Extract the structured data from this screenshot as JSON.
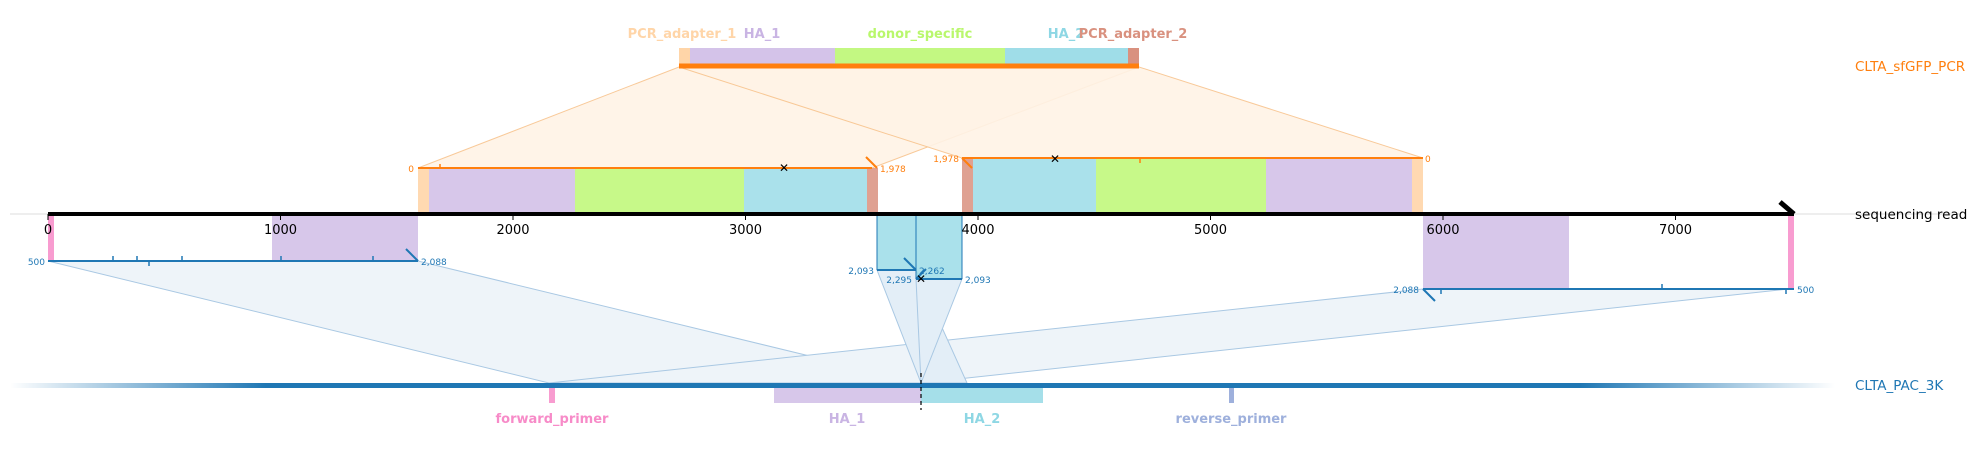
{
  "tracks": {
    "pcr": {
      "label": "CLTA_sfGFP_PCR",
      "color": "#ff7f0e"
    },
    "read": {
      "label": "sequencing read",
      "color": "#000000"
    },
    "ref": {
      "label": "CLTA_PAC_3K",
      "color": "#1f77b4"
    }
  },
  "read_axis": {
    "ticks": [
      "0",
      "1000",
      "2000",
      "3000",
      "4000",
      "5000",
      "6000",
      "7000"
    ]
  },
  "pcr_features": [
    {
      "name": "PCR_adapter_1",
      "color": "#ffd5a8"
    },
    {
      "name": "HA_1",
      "color": "#c9b4e3"
    },
    {
      "name": "donor_specific",
      "color": "#b9f76c"
    },
    {
      "name": "HA_2",
      "color": "#8ed7e4"
    },
    {
      "name": "PCR_adapter_2",
      "color": "#d9917f"
    }
  ],
  "ref_features": [
    {
      "name": "forward_primer",
      "color": "#f78bc8"
    },
    {
      "name": "HA_1",
      "color": "#c9b4e3"
    },
    {
      "name": "HA_2",
      "color": "#8ed7e4"
    },
    {
      "name": "reverse_primer",
      "color": "#9eb0dc"
    }
  ],
  "alignment_numbers": {
    "pcr_left_start": "0",
    "pcr_left_end": "1,978",
    "pcr_right_start": "1,978",
    "pcr_right_end": "0",
    "ref_left_start": "500",
    "ref_left_end": "2,088",
    "ref_mid1_start": "2,093",
    "ref_mid1_end": "2,262",
    "ref_mid2_start": "2,295",
    "ref_mid2_end": "2,093",
    "ref_right_start": "2,088",
    "ref_right_end": "500"
  }
}
